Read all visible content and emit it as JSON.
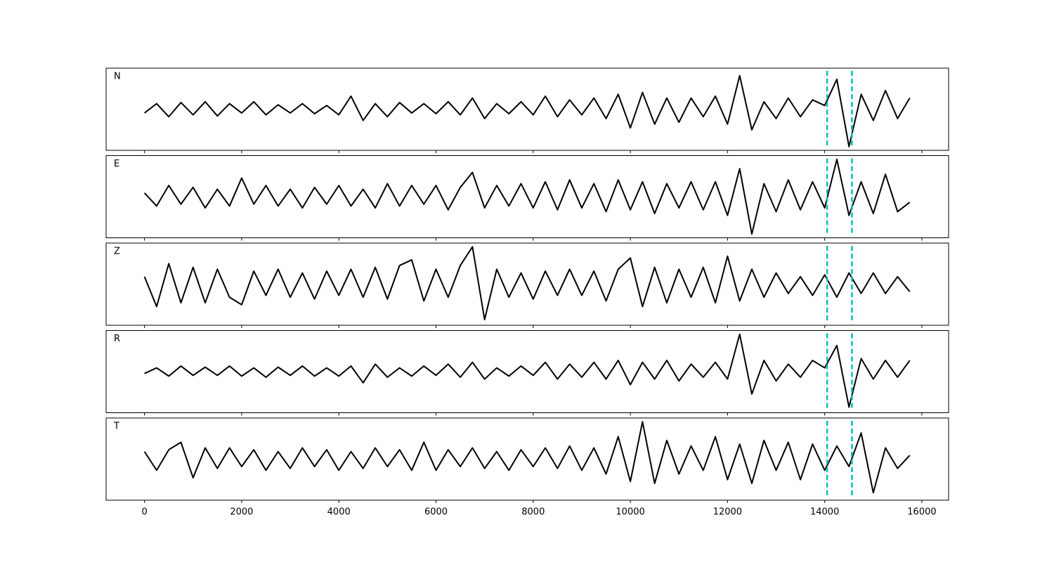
{
  "chart_data": [
    {
      "type": "line",
      "title": "N",
      "color": "#000000",
      "xlim": [
        -790,
        16550
      ],
      "ylim": [
        -1.1,
        1.1
      ],
      "xticks": [
        0,
        2000,
        4000,
        6000,
        8000,
        10000,
        12000,
        14000,
        16000
      ],
      "vlines": [
        14050,
        14560
      ],
      "vline_color": "#00bfbf",
      "x": [
        0,
        250,
        500,
        750,
        1000,
        1250,
        1500,
        1750,
        2000,
        2250,
        2500,
        2750,
        3000,
        3250,
        3500,
        3750,
        4000,
        4250,
        4500,
        4750,
        5000,
        5250,
        5500,
        5750,
        6000,
        6250,
        6500,
        6750,
        7000,
        7250,
        7500,
        7750,
        8000,
        8250,
        8500,
        8750,
        9000,
        9250,
        9500,
        9750,
        10000,
        10250,
        10500,
        10750,
        11000,
        11250,
        11500,
        11750,
        12000,
        12250,
        12500,
        12750,
        13000,
        13250,
        13500,
        13750,
        14000,
        14250,
        14500,
        14750,
        15000,
        15250,
        15500,
        15750
      ],
      "values": [
        -0.1,
        0.15,
        -0.2,
        0.18,
        -0.15,
        0.2,
        -0.18,
        0.15,
        -0.1,
        0.2,
        -0.15,
        0.12,
        -0.1,
        0.15,
        -0.12,
        0.1,
        -0.15,
        0.35,
        -0.3,
        0.15,
        -0.2,
        0.18,
        -0.1,
        0.15,
        -0.12,
        0.2,
        -0.15,
        0.3,
        -0.25,
        0.15,
        -0.12,
        0.2,
        -0.15,
        0.35,
        -0.2,
        0.25,
        -0.15,
        0.3,
        -0.25,
        0.4,
        -0.5,
        0.45,
        -0.4,
        0.3,
        -0.35,
        0.3,
        -0.2,
        0.35,
        -0.4,
        0.9,
        -0.55,
        0.2,
        -0.25,
        0.3,
        -0.2,
        0.25,
        0.1,
        0.8,
        -1.0,
        0.4,
        -0.3,
        0.5,
        -0.25,
        0.3
      ]
    },
    {
      "type": "line",
      "title": "E",
      "color": "#000000",
      "xlim": [
        -790,
        16550
      ],
      "ylim": [
        -1.1,
        1.1
      ],
      "xticks": [
        0,
        2000,
        4000,
        6000,
        8000,
        10000,
        12000,
        14000,
        16000
      ],
      "vlines": [
        14050,
        14560
      ],
      "vline_color": "#00bfbf",
      "x": [
        0,
        250,
        500,
        750,
        1000,
        1250,
        1500,
        1750,
        2000,
        2250,
        2500,
        2750,
        3000,
        3250,
        3500,
        3750,
        4000,
        4250,
        4500,
        4750,
        5000,
        5250,
        5500,
        5750,
        6000,
        6250,
        6500,
        6750,
        7000,
        7250,
        7500,
        7750,
        8000,
        8250,
        8500,
        8750,
        9000,
        9250,
        9500,
        9750,
        10000,
        10250,
        10500,
        10750,
        11000,
        11250,
        11500,
        11750,
        12000,
        12250,
        12500,
        12750,
        13000,
        13250,
        13500,
        13750,
        14000,
        14250,
        14500,
        14750,
        15000,
        15250,
        15500,
        15750
      ],
      "values": [
        0.1,
        -0.25,
        0.3,
        -0.2,
        0.25,
        -0.3,
        0.2,
        -0.25,
        0.5,
        -0.2,
        0.3,
        -0.25,
        0.2,
        -0.3,
        0.25,
        -0.2,
        0.3,
        -0.25,
        0.2,
        -0.3,
        0.35,
        -0.25,
        0.3,
        -0.2,
        0.3,
        -0.35,
        0.25,
        0.65,
        -0.3,
        0.3,
        -0.25,
        0.35,
        -0.3,
        0.4,
        -0.35,
        0.45,
        -0.3,
        0.35,
        -0.4,
        0.45,
        -0.35,
        0.4,
        -0.45,
        0.35,
        -0.3,
        0.4,
        -0.35,
        0.4,
        -0.5,
        0.75,
        -1.0,
        0.35,
        -0.4,
        0.45,
        -0.35,
        0.4,
        -0.3,
        1.0,
        -0.5,
        0.4,
        -0.45,
        0.6,
        -0.4,
        -0.15
      ]
    },
    {
      "type": "line",
      "title": "Z",
      "color": "#000000",
      "xlim": [
        -790,
        16550
      ],
      "ylim": [
        -1.1,
        1.1
      ],
      "xticks": [
        0,
        2000,
        4000,
        6000,
        8000,
        10000,
        12000,
        14000,
        16000
      ],
      "vlines": [
        14050,
        14560
      ],
      "vline_color": "#00bfbf",
      "x": [
        0,
        250,
        500,
        750,
        1000,
        1250,
        1500,
        1750,
        2000,
        2250,
        2500,
        2750,
        3000,
        3250,
        3500,
        3750,
        4000,
        4250,
        4500,
        4750,
        5000,
        5250,
        5500,
        5750,
        6000,
        6250,
        6500,
        6750,
        7000,
        7250,
        7500,
        7750,
        8000,
        8250,
        8500,
        8750,
        9000,
        9250,
        9500,
        9750,
        10000,
        10250,
        10500,
        10750,
        11000,
        11250,
        11500,
        11750,
        12000,
        12250,
        12500,
        12750,
        13000,
        13250,
        13500,
        13750,
        14000,
        14250,
        14500,
        14750,
        15000,
        15250,
        15500,
        15750
      ],
      "values": [
        0.2,
        -0.6,
        0.55,
        -0.5,
        0.45,
        -0.5,
        0.4,
        -0.35,
        -0.55,
        0.35,
        -0.3,
        0.4,
        -0.35,
        0.3,
        -0.4,
        0.35,
        -0.3,
        0.4,
        -0.35,
        0.45,
        -0.4,
        0.5,
        0.65,
        -0.45,
        0.4,
        -0.35,
        0.5,
        1.0,
        -0.95,
        0.4,
        -0.35,
        0.3,
        -0.4,
        0.35,
        -0.3,
        0.4,
        -0.3,
        0.35,
        -0.45,
        0.4,
        0.7,
        -0.6,
        0.45,
        -0.5,
        0.4,
        -0.35,
        0.45,
        -0.5,
        0.75,
        -0.45,
        0.4,
        -0.35,
        0.3,
        -0.25,
        0.2,
        -0.3,
        0.25,
        -0.35,
        0.3,
        -0.25,
        0.3,
        -0.25,
        0.2,
        -0.2
      ]
    },
    {
      "type": "line",
      "title": "R",
      "color": "#000000",
      "xlim": [
        -790,
        16550
      ],
      "ylim": [
        -1.1,
        1.1
      ],
      "xticks": [
        0,
        2000,
        4000,
        6000,
        8000,
        10000,
        12000,
        14000,
        16000
      ],
      "vlines": [
        14050,
        14560
      ],
      "vline_color": "#00bfbf",
      "x": [
        0,
        250,
        500,
        750,
        1000,
        1250,
        1500,
        1750,
        2000,
        2250,
        2500,
        2750,
        3000,
        3250,
        3500,
        3750,
        4000,
        4250,
        4500,
        4750,
        5000,
        5250,
        5500,
        5750,
        6000,
        6250,
        6500,
        6750,
        7000,
        7250,
        7500,
        7750,
        8000,
        8250,
        8500,
        8750,
        9000,
        9250,
        9500,
        9750,
        10000,
        10250,
        10500,
        10750,
        11000,
        11250,
        11500,
        11750,
        12000,
        12250,
        12500,
        12750,
        13000,
        13250,
        13500,
        13750,
        14000,
        14250,
        14500,
        14750,
        15000,
        15250,
        15500,
        15750
      ],
      "values": [
        -0.05,
        0.1,
        -0.12,
        0.15,
        -0.1,
        0.12,
        -0.1,
        0.15,
        -0.12,
        0.1,
        -0.15,
        0.12,
        -0.1,
        0.15,
        -0.12,
        0.1,
        -0.12,
        0.15,
        -0.3,
        0.2,
        -0.15,
        0.1,
        -0.12,
        0.15,
        -0.1,
        0.2,
        -0.15,
        0.25,
        -0.2,
        0.1,
        -0.12,
        0.15,
        -0.1,
        0.25,
        -0.2,
        0.2,
        -0.15,
        0.25,
        -0.2,
        0.3,
        -0.35,
        0.25,
        -0.2,
        0.3,
        -0.25,
        0.2,
        -0.15,
        0.25,
        -0.2,
        1.0,
        -0.6,
        0.3,
        -0.25,
        0.2,
        -0.15,
        0.3,
        0.1,
        0.7,
        -0.95,
        0.35,
        -0.2,
        0.3,
        -0.15,
        0.3
      ]
    },
    {
      "type": "line",
      "title": "T",
      "color": "#000000",
      "xlim": [
        -790,
        16550
      ],
      "ylim": [
        -1.1,
        1.1
      ],
      "xticks": [
        0,
        2000,
        4000,
        6000,
        8000,
        10000,
        12000,
        14000,
        16000
      ],
      "vlines": [
        14050,
        14560
      ],
      "vline_color": "#00bfbf",
      "x": [
        0,
        250,
        500,
        750,
        1000,
        1250,
        1500,
        1750,
        2000,
        2250,
        2500,
        2750,
        3000,
        3250,
        3500,
        3750,
        4000,
        4250,
        4500,
        4750,
        5000,
        5250,
        5500,
        5750,
        6000,
        6250,
        6500,
        6750,
        7000,
        7250,
        7500,
        7750,
        8000,
        8250,
        8500,
        8750,
        9000,
        9250,
        9500,
        9750,
        10000,
        10250,
        10500,
        10750,
        11000,
        11250,
        11500,
        11750,
        12000,
        12250,
        12500,
        12750,
        13000,
        13250,
        13500,
        13750,
        14000,
        14250,
        14500,
        14750,
        15000,
        15250,
        15500,
        15750
      ],
      "values": [
        0.2,
        -0.3,
        0.25,
        0.45,
        -0.5,
        0.3,
        -0.25,
        0.3,
        -0.2,
        0.25,
        -0.3,
        0.2,
        -0.25,
        0.3,
        -0.2,
        0.25,
        -0.3,
        0.2,
        -0.25,
        0.3,
        -0.2,
        0.25,
        -0.3,
        0.45,
        -0.3,
        0.25,
        -0.2,
        0.3,
        -0.25,
        0.2,
        -0.3,
        0.25,
        -0.2,
        0.3,
        -0.25,
        0.35,
        -0.3,
        0.3,
        -0.4,
        0.6,
        -0.6,
        1.0,
        -0.65,
        0.5,
        -0.4,
        0.35,
        -0.3,
        0.6,
        -0.55,
        0.4,
        -0.65,
        0.5,
        -0.3,
        0.45,
        -0.55,
        0.4,
        -0.3,
        0.35,
        -0.2,
        0.7,
        -0.9,
        0.3,
        -0.25,
        0.1
      ]
    }
  ]
}
